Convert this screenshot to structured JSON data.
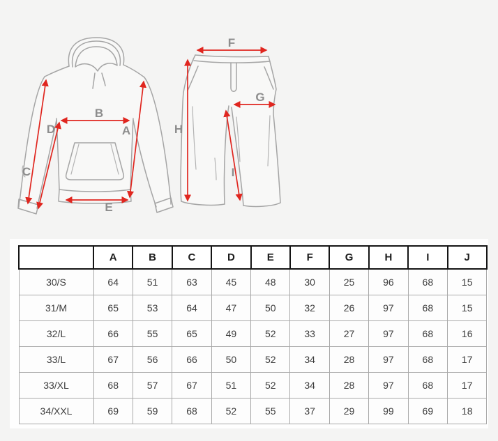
{
  "page": {
    "kind": "product-size-guide",
    "items_shown": [
      "hooded sweatshirt",
      "sweatpants"
    ]
  },
  "colors": {
    "page_bg": "#f4f4f3",
    "panel_bg": "#fefefe",
    "garment_outline": "#a5a5a5",
    "arrow_red": "#e0261f",
    "letter_gray": "#8d8d8d",
    "header_border": "#141414",
    "cell_border": "#a9a9a9"
  },
  "diagram": {
    "labels": {
      "A": "A",
      "B": "B",
      "C": "C",
      "D": "D",
      "E": "E",
      "F": "F",
      "G": "G",
      "H": "H",
      "I": "I"
    }
  },
  "table": {
    "corner_label": "",
    "headers": [
      "A",
      "B",
      "C",
      "D",
      "E",
      "F",
      "G",
      "H",
      "I",
      "J"
    ],
    "rows": [
      {
        "size": "30/S",
        "values": [
          64,
          51,
          63,
          45,
          48,
          30,
          25,
          96,
          68,
          15
        ]
      },
      {
        "size": "31/M",
        "values": [
          65,
          53,
          64,
          47,
          50,
          32,
          26,
          97,
          68,
          15
        ]
      },
      {
        "size": "32/L",
        "values": [
          66,
          55,
          65,
          49,
          52,
          33,
          27,
          97,
          68,
          16
        ]
      },
      {
        "size": "33/L",
        "values": [
          67,
          56,
          66,
          50,
          52,
          34,
          28,
          97,
          68,
          17
        ]
      },
      {
        "size": "33/XL",
        "values": [
          68,
          57,
          67,
          51,
          52,
          34,
          28,
          97,
          68,
          17
        ]
      },
      {
        "size": "34/XXL",
        "values": [
          69,
          59,
          68,
          52,
          55,
          37,
          29,
          99,
          69,
          18
        ]
      }
    ]
  }
}
